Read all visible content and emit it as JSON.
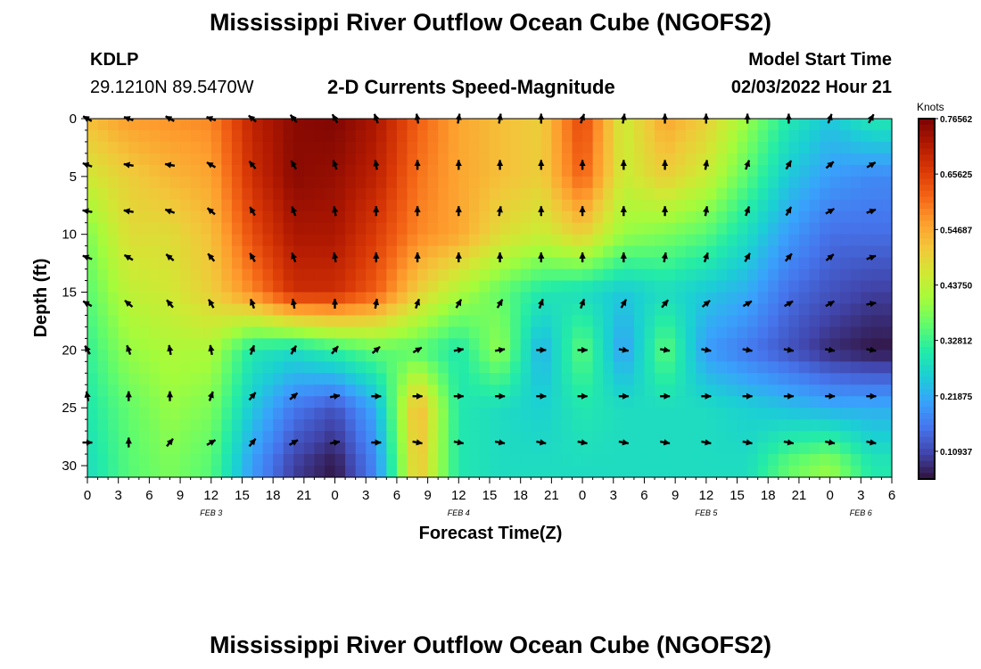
{
  "header": {
    "title": "Mississippi River Outflow Ocean Cube (NGOFS2)",
    "station": "KDLP",
    "coordinates": "29.1210N  89.5470W",
    "subtitle": "2-D Currents Speed-Magnitude",
    "model_start_label": "Model Start Time",
    "model_start_value": "02/03/2022 Hour 21"
  },
  "footer": {
    "title": "Mississippi River Outflow Ocean Cube (NGOFS2)"
  },
  "chart_data": {
    "type": "heatmap",
    "title": "2-D Currents Speed-Magnitude",
    "xlabel": "Forecast Time(Z)",
    "ylabel": "Depth (ft)",
    "x_hours_range": [
      0,
      78
    ],
    "x_tick_labels": [
      "0",
      "3",
      "6",
      "9",
      "12",
      "15",
      "18",
      "21",
      "0",
      "3",
      "6",
      "9",
      "12",
      "15",
      "18",
      "21",
      "0",
      "3",
      "6",
      "9",
      "12",
      "15",
      "18",
      "21",
      "0",
      "3",
      "6"
    ],
    "day_labels": [
      {
        "text": "FEB 3",
        "hour": 12
      },
      {
        "text": "FEB 4",
        "hour": 36
      },
      {
        "text": "FEB 5",
        "hour": 60
      },
      {
        "text": "FEB 6",
        "hour": 75
      }
    ],
    "ylim": [
      0,
      31
    ],
    "y_ticks": [
      0,
      5,
      10,
      15,
      20,
      25,
      30
    ],
    "colorbar": {
      "label": "Knots",
      "min": 0.0547,
      "max": 0.7656,
      "ticks": [
        "0.76562",
        "0.65625",
        "0.54687",
        "0.43750",
        "0.32812",
        "0.21875",
        "0.10937"
      ],
      "colors": [
        "#30123b",
        "#4145ab",
        "#4675ed",
        "#39a2fc",
        "#1bcfd4",
        "#24eca6",
        "#61fc6c",
        "#a4fc3b",
        "#d1e834",
        "#f3c63a",
        "#fe9b2d",
        "#f36315",
        "#d93806",
        "#b11901",
        "#7a0403"
      ]
    },
    "speed_grid": {
      "hours": [
        0,
        4,
        8,
        12,
        16,
        20,
        24,
        28,
        32,
        36,
        40,
        44,
        48,
        52,
        56,
        60,
        64,
        68,
        72,
        76
      ],
      "depths": [
        0,
        5,
        10,
        15,
        20,
        25,
        30
      ],
      "values": [
        [
          0.52,
          0.56,
          0.57,
          0.58,
          0.7,
          0.75,
          0.76,
          0.72,
          0.62,
          0.55,
          0.52,
          0.5,
          0.65,
          0.45,
          0.55,
          0.5,
          0.4,
          0.3,
          0.25,
          0.3
        ],
        [
          0.46,
          0.5,
          0.53,
          0.55,
          0.68,
          0.75,
          0.74,
          0.7,
          0.6,
          0.55,
          0.52,
          0.5,
          0.62,
          0.45,
          0.5,
          0.45,
          0.35,
          0.25,
          0.2,
          0.18
        ],
        [
          0.38,
          0.48,
          0.48,
          0.52,
          0.64,
          0.72,
          0.72,
          0.66,
          0.58,
          0.55,
          0.48,
          0.45,
          0.5,
          0.4,
          0.38,
          0.35,
          0.28,
          0.2,
          0.15,
          0.15
        ],
        [
          0.35,
          0.44,
          0.46,
          0.5,
          0.58,
          0.68,
          0.68,
          0.62,
          0.5,
          0.42,
          0.36,
          0.3,
          0.28,
          0.25,
          0.28,
          0.25,
          0.22,
          0.15,
          0.12,
          0.1
        ],
        [
          0.32,
          0.4,
          0.42,
          0.42,
          0.3,
          0.28,
          0.32,
          0.36,
          0.35,
          0.3,
          0.4,
          0.22,
          0.36,
          0.2,
          0.36,
          0.2,
          0.16,
          0.12,
          0.08,
          0.06
        ],
        [
          0.3,
          0.36,
          0.4,
          0.38,
          0.25,
          0.16,
          0.12,
          0.22,
          0.54,
          0.3,
          0.28,
          0.26,
          0.3,
          0.28,
          0.28,
          0.28,
          0.26,
          0.24,
          0.22,
          0.22
        ],
        [
          0.28,
          0.35,
          0.38,
          0.35,
          0.2,
          0.1,
          0.06,
          0.18,
          0.52,
          0.3,
          0.28,
          0.28,
          0.28,
          0.28,
          0.28,
          0.28,
          0.28,
          0.36,
          0.4,
          0.3
        ]
      ]
    },
    "vector_angles_deg": {
      "hours": [
        0,
        4,
        8,
        12,
        16,
        20,
        24,
        28,
        32,
        36,
        40,
        44,
        48,
        52,
        56,
        60,
        64,
        68,
        72,
        76
      ],
      "depths": [
        0,
        4,
        8,
        12,
        16,
        20,
        24,
        28
      ],
      "values": [
        [
          300,
          290,
          300,
          290,
          310,
          320,
          330,
          340,
          350,
          10,
          10,
          0,
          20,
          10,
          0,
          0,
          0,
          0,
          20,
          30
        ],
        [
          290,
          280,
          280,
          300,
          320,
          330,
          340,
          350,
          0,
          0,
          0,
          0,
          0,
          0,
          0,
          10,
          20,
          30,
          50,
          60
        ],
        [
          280,
          280,
          290,
          310,
          330,
          340,
          350,
          0,
          0,
          0,
          10,
          0,
          0,
          0,
          0,
          10,
          20,
          30,
          60,
          70
        ],
        [
          290,
          300,
          310,
          320,
          330,
          340,
          350,
          0,
          0,
          0,
          0,
          0,
          0,
          0,
          10,
          20,
          30,
          40,
          50,
          70
        ],
        [
          300,
          310,
          320,
          330,
          340,
          350,
          0,
          10,
          20,
          30,
          30,
          20,
          20,
          30,
          40,
          50,
          60,
          60,
          60,
          80
        ],
        [
          330,
          340,
          350,
          350,
          20,
          30,
          40,
          50,
          60,
          80,
          80,
          90,
          90,
          100,
          100,
          100,
          100,
          100,
          100,
          100
        ],
        [
          350,
          0,
          0,
          20,
          40,
          50,
          80,
          90,
          90,
          90,
          90,
          90,
          90,
          90,
          90,
          90,
          90,
          90,
          90,
          90
        ],
        [
          90,
          0,
          40,
          60,
          40,
          60,
          80,
          90,
          100,
          100,
          100,
          100,
          100,
          100,
          100,
          100,
          100,
          100,
          100,
          100
        ]
      ]
    }
  }
}
